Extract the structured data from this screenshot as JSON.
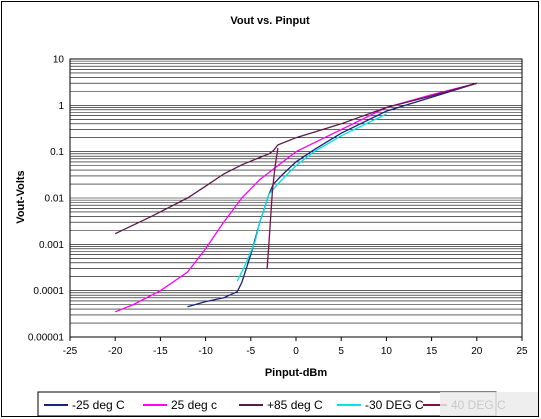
{
  "chart_data": {
    "type": "line",
    "title": "Vout vs. Pinput",
    "xlabel": "Pinput-dBm",
    "ylabel": "Vout-Volts",
    "xlim": [
      -25,
      25
    ],
    "ylim": [
      1e-05,
      10
    ],
    "y_scale": "log",
    "x_ticks": [
      -25,
      -20,
      -15,
      -10,
      -5,
      0,
      5,
      10,
      15,
      20,
      25
    ],
    "x_tick_labels": [
      "-25",
      "-20",
      "-15",
      "-10",
      "-5",
      "0",
      "5",
      "10",
      "15",
      "20",
      "25"
    ],
    "y_ticks": [
      1e-05,
      0.0001,
      0.001,
      0.01,
      0.1,
      1,
      10
    ],
    "y_tick_labels": [
      "0.00001",
      "0.0001",
      "0.001",
      "0.01",
      "0.1",
      "1",
      "10"
    ],
    "grid": "horizontal",
    "legend_position": "bottom",
    "series": [
      {
        "name": "-25 deg C",
        "color": "#1a237e",
        "x": [
          -12,
          -10,
          -8,
          -6.5,
          -6,
          -5,
          -4,
          -3.5,
          -3,
          -2.5,
          -1.5,
          0,
          2,
          5,
          10,
          15,
          20
        ],
        "y": [
          4.5e-05,
          5.8e-05,
          7e-05,
          9.5e-05,
          0.00015,
          0.0006,
          0.003,
          0.006,
          0.012,
          0.02,
          0.032,
          0.06,
          0.11,
          0.25,
          0.75,
          1.5,
          3
        ]
      },
      {
        "name": "25 deg c",
        "color": "#ff00ff",
        "x": [
          -20,
          -18,
          -15,
          -12,
          -10,
          -8,
          -6,
          -4,
          -2,
          0,
          5,
          10,
          15,
          20
        ],
        "y": [
          3.5e-05,
          5e-05,
          0.0001,
          0.00025,
          0.0008,
          0.003,
          0.01,
          0.025,
          0.05,
          0.1,
          0.3,
          0.9,
          1.7,
          3
        ]
      },
      {
        "name": "+85 deg C",
        "color": "#5c1a46",
        "x": [
          -20,
          -16,
          -12,
          -10,
          -8,
          -6,
          -4,
          -3,
          -2.5,
          -2,
          0,
          5,
          10,
          15,
          20
        ],
        "y": [
          0.0017,
          0.004,
          0.01,
          0.018,
          0.033,
          0.052,
          0.075,
          0.09,
          0.105,
          0.14,
          0.2,
          0.4,
          0.9,
          1.6,
          3
        ]
      },
      {
        "name": "-30 DEG C",
        "color": "#00e5e5",
        "x": [
          -6.5,
          -5.5,
          -4.5,
          -4,
          -3.5,
          -3,
          -2,
          -1,
          0,
          2,
          5,
          10
        ],
        "y": [
          0.00016,
          0.0004,
          0.0012,
          0.003,
          0.006,
          0.012,
          0.02,
          0.032,
          0.05,
          0.1,
          0.22,
          0.65
        ]
      },
      {
        "name": "40 DEG C",
        "color": "#7b1050",
        "x": [
          -3.2,
          -3,
          -2.8,
          -2.6,
          -2.3,
          -2
        ],
        "y": [
          0.0003,
          0.001,
          0.004,
          0.015,
          0.05,
          0.12
        ]
      }
    ]
  }
}
